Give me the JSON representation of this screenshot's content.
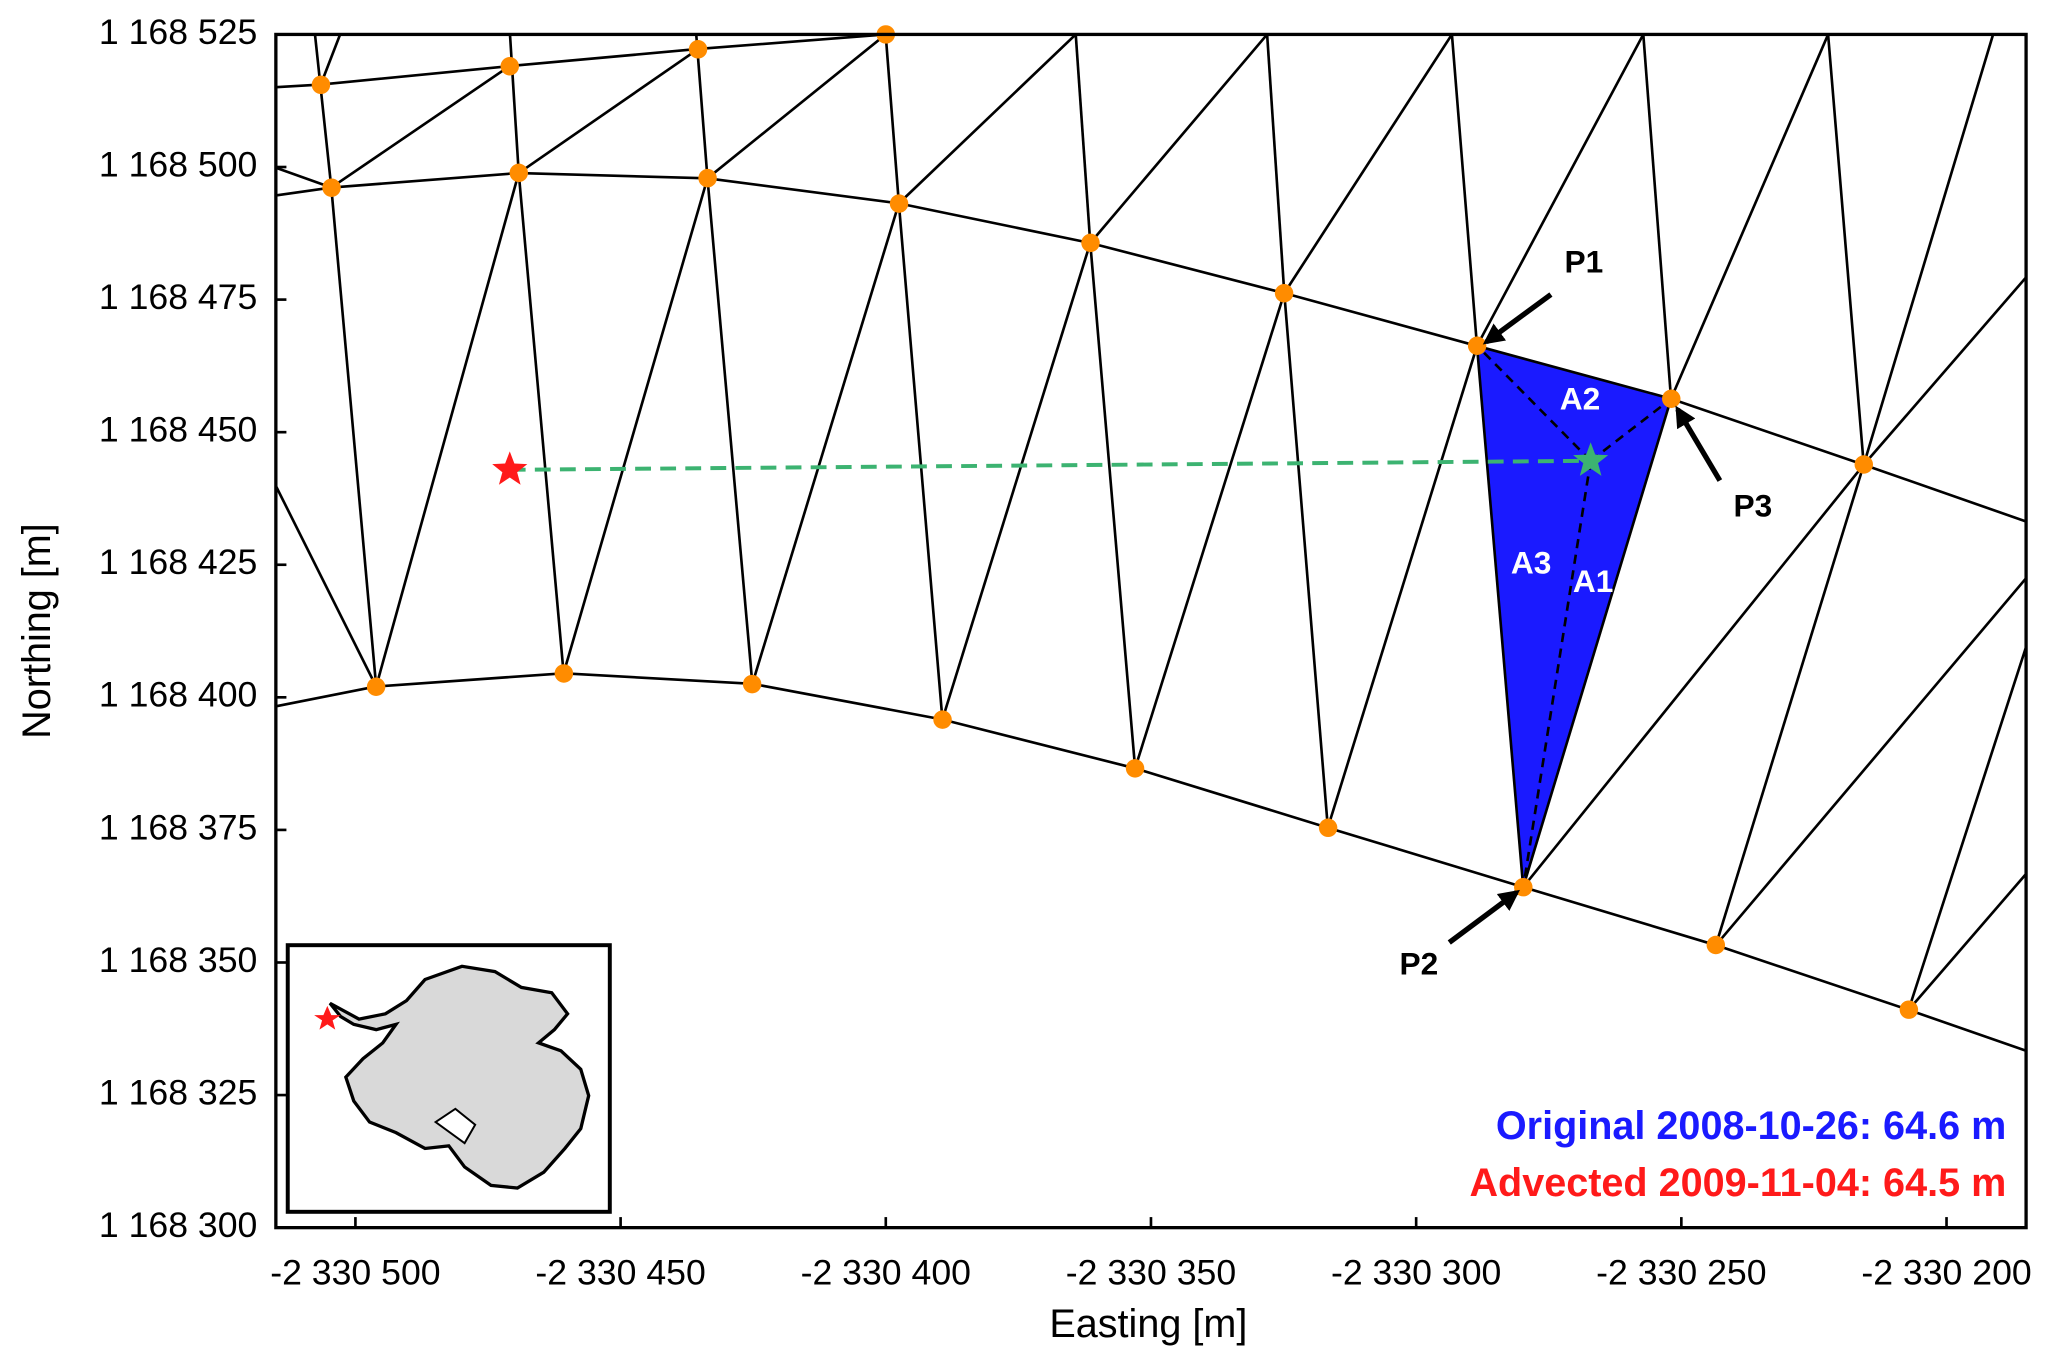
{
  "chart_data": {
    "type": "scatter",
    "xlabel": "Easting [m]",
    "ylabel": "Northing [m]",
    "xlim": [
      -2330515,
      -2330185
    ],
    "ylim": [
      1168300,
      1168525
    ],
    "xticks": [
      {
        "value": -2330500,
        "label": "-2 330 500"
      },
      {
        "value": -2330450,
        "label": "-2 330 450"
      },
      {
        "value": -2330400,
        "label": "-2 330 400"
      },
      {
        "value": -2330350,
        "label": "-2 330 350"
      },
      {
        "value": -2330300,
        "label": "-2 330 300"
      },
      {
        "value": -2330250,
        "label": "-2 330 250"
      },
      {
        "value": -2330200,
        "label": "-2 330 200"
      }
    ],
    "yticks": [
      {
        "value": 1168300,
        "label": "1 168 300"
      },
      {
        "value": 1168325,
        "label": "1 168 325"
      },
      {
        "value": 1168350,
        "label": "1 168 350"
      },
      {
        "value": 1168375,
        "label": "1 168 375"
      },
      {
        "value": 1168400,
        "label": "1 168 400"
      },
      {
        "value": 1168425,
        "label": "1 168 425"
      },
      {
        "value": 1168450,
        "label": "1 168 450"
      },
      {
        "value": 1168475,
        "label": "1 168 475"
      },
      {
        "value": 1168500,
        "label": "1 168 500"
      },
      {
        "value": 1168525,
        "label": "1 168 525"
      }
    ],
    "nodes": {
      "color": "#ff8c00",
      "x": [
        -2330506.5,
        -2330470.9,
        -2330435.4,
        -2330400.0,
        -2330504.5,
        -2330469.2,
        -2330433.6,
        -2330397.5,
        -2330361.4,
        -2330324.9,
        -2330288.5,
        -2330251.9,
        -2330215.6,
        -2330496.1,
        -2330460.7,
        -2330425.2,
        -2330389.3,
        -2330353.0,
        -2330316.6,
        -2330279.8,
        -2330243.5,
        -2330207.1
      ],
      "y": [
        1168515.5,
        1168519.0,
        1168522.2,
        1168525.0,
        1168496.1,
        1168498.9,
        1168497.9,
        1168493.1,
        1168485.7,
        1168476.2,
        1168466.3,
        1168456.3,
        1168443.9,
        1168402.0,
        1168404.5,
        1168402.5,
        1168395.8,
        1168386.6,
        1168375.4,
        1168364.2,
        1168353.3,
        1168341.1
      ]
    },
    "triangle": {
      "color": "#1a1aff",
      "labels": [
        "P1",
        "P2",
        "P3"
      ],
      "x": [
        -2330288.5,
        -2330279.8,
        -2330251.9
      ],
      "y": [
        1168466.3,
        1168364.2,
        1168456.3
      ]
    },
    "area_labels": [
      "A1",
      "A2",
      "A3"
    ],
    "advected_point": {
      "color": "#ff1a1a",
      "x": -2330470.9,
      "y": 1168442.9
    },
    "original_point": {
      "color": "#3cb371",
      "x": -2330267.1,
      "y": 1168444.6
    },
    "legend": [
      {
        "text": "Original 2008-10-26: 64.6 m",
        "color": "#1a1aff"
      },
      {
        "text": "Advected 2009-11-04: 64.5 m",
        "color": "#ff1a1a"
      }
    ]
  }
}
